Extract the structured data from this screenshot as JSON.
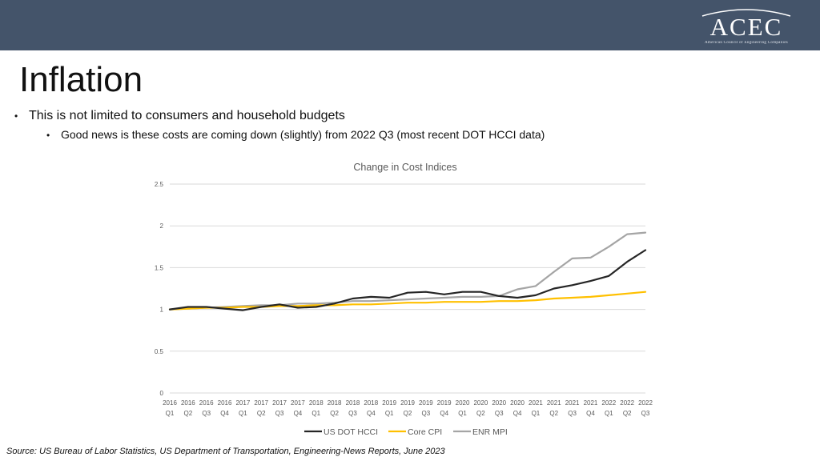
{
  "header": {
    "logo_text": "ACEC",
    "logo_subtitle": "American Council of Engineering Companies"
  },
  "slide": {
    "title": "Inflation",
    "bullet1": "This is not limited to consumers and household budgets",
    "bullet2": "Good news is these costs are coming down (slightly) from 2022 Q3 (most recent DOT HCCI data)",
    "source": "Source: US Bureau of Labor Statistics, US Department of Transportation, Engineering-News Reports, June 2023"
  },
  "chart_data": {
    "type": "line",
    "title": "Change in Cost Indices",
    "xlabel": "",
    "ylabel": "",
    "ylim": [
      0,
      2.5
    ],
    "yticks": [
      0,
      0.5,
      1,
      1.5,
      2,
      2.5
    ],
    "ytick_labels": [
      "0",
      "0.5",
      "1",
      "1.5",
      "2",
      "2.5"
    ],
    "grid": true,
    "legend_position": "bottom",
    "categories": [
      [
        "2016",
        "Q1"
      ],
      [
        "2016",
        "Q2"
      ],
      [
        "2016",
        "Q3"
      ],
      [
        "2016",
        "Q4"
      ],
      [
        "2017",
        "Q1"
      ],
      [
        "2017",
        "Q2"
      ],
      [
        "2017",
        "Q3"
      ],
      [
        "2017",
        "Q4"
      ],
      [
        "2018",
        "Q1"
      ],
      [
        "2018",
        "Q2"
      ],
      [
        "2018",
        "Q3"
      ],
      [
        "2018",
        "Q4"
      ],
      [
        "2019",
        "Q1"
      ],
      [
        "2019",
        "Q2"
      ],
      [
        "2019",
        "Q3"
      ],
      [
        "2019",
        "Q4"
      ],
      [
        "2020",
        "Q1"
      ],
      [
        "2020",
        "Q2"
      ],
      [
        "2020",
        "Q3"
      ],
      [
        "2020",
        "Q4"
      ],
      [
        "2021",
        "Q1"
      ],
      [
        "2021",
        "Q2"
      ],
      [
        "2021",
        "Q3"
      ],
      [
        "2021",
        "Q4"
      ],
      [
        "2022",
        "Q1"
      ],
      [
        "2022",
        "Q2"
      ],
      [
        "2022",
        "Q3"
      ]
    ],
    "series": [
      {
        "name": "US DOT HCCI",
        "color": "#262626",
        "values": [
          1.0,
          1.03,
          1.03,
          1.01,
          0.99,
          1.03,
          1.06,
          1.02,
          1.03,
          1.07,
          1.13,
          1.15,
          1.14,
          1.2,
          1.21,
          1.18,
          1.21,
          1.21,
          1.16,
          1.14,
          1.17,
          1.25,
          1.29,
          1.34,
          1.4,
          1.57,
          1.71
        ]
      },
      {
        "name": "Core CPI",
        "color": "#ffc000",
        "values": [
          1.0,
          1.01,
          1.02,
          1.02,
          1.03,
          1.03,
          1.04,
          1.04,
          1.05,
          1.05,
          1.06,
          1.06,
          1.07,
          1.08,
          1.08,
          1.09,
          1.09,
          1.09,
          1.1,
          1.1,
          1.11,
          1.13,
          1.14,
          1.15,
          1.17,
          1.19,
          1.21
        ]
      },
      {
        "name": "ENR MPI",
        "color": "#a5a5a5",
        "values": [
          1.0,
          1.01,
          1.02,
          1.03,
          1.04,
          1.05,
          1.05,
          1.07,
          1.07,
          1.08,
          1.1,
          1.1,
          1.11,
          1.12,
          1.13,
          1.14,
          1.15,
          1.15,
          1.16,
          1.24,
          1.28,
          1.45,
          1.61,
          1.62,
          1.75,
          1.9,
          1.92
        ]
      }
    ]
  }
}
